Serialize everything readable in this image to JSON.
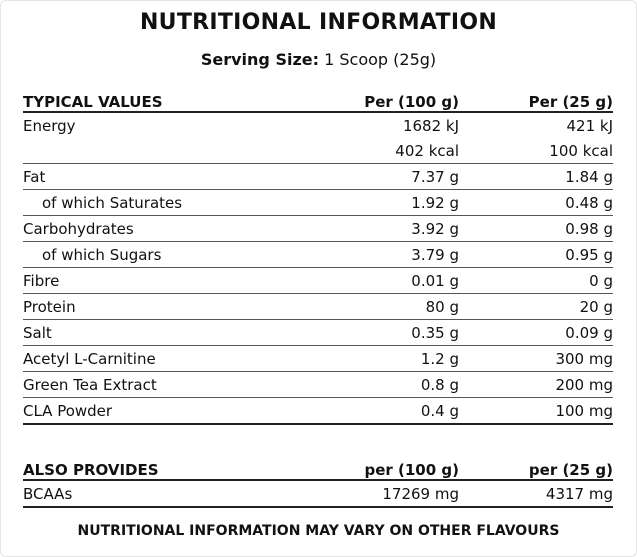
{
  "title": "NUTRITIONAL INFORMATION",
  "serving": {
    "label": "Serving Size:",
    "value": "1 Scoop (25g)"
  },
  "typical": {
    "headers": [
      "TYPICAL VALUES",
      "Per (100 g)",
      "Per (25 g)"
    ],
    "rows": [
      {
        "name": "Energy",
        "per100": "1682 kJ",
        "per25": "421 kJ"
      },
      {
        "name": "",
        "per100": "402 kcal",
        "per25": "100 kcal"
      },
      {
        "name": "Fat",
        "per100": "7.37 g",
        "per25": "1.84 g"
      },
      {
        "name": "of which Saturates",
        "per100": "1.92 g",
        "per25": "0.48 g"
      },
      {
        "name": "Carbohydrates",
        "per100": "3.92 g",
        "per25": "0.98 g"
      },
      {
        "name": "of which Sugars",
        "per100": "3.79 g",
        "per25": "0.95 g"
      },
      {
        "name": "Fibre",
        "per100": "0.01 g",
        "per25": "0 g"
      },
      {
        "name": "Protein",
        "per100": "80 g",
        "per25": "20 g"
      },
      {
        "name": "Salt",
        "per100": "0.35 g",
        "per25": "0.09 g"
      },
      {
        "name": "Acetyl L-Carnitine",
        "per100": "1.2 g",
        "per25": "300 mg"
      },
      {
        "name": "Green Tea Extract",
        "per100": "0.8 g",
        "per25": "200 mg"
      },
      {
        "name": "CLA Powder",
        "per100": "0.4 g",
        "per25": "100 mg"
      }
    ]
  },
  "also": {
    "headers": [
      "ALSO PROVIDES",
      "per (100 g)",
      "per (25 g)"
    ],
    "rows": [
      {
        "name": "BCAAs",
        "per100": "17269 mg",
        "per25": "4317 mg"
      }
    ]
  },
  "footer": "NUTRITIONAL INFORMATION MAY VARY ON OTHER FLAVOURS"
}
